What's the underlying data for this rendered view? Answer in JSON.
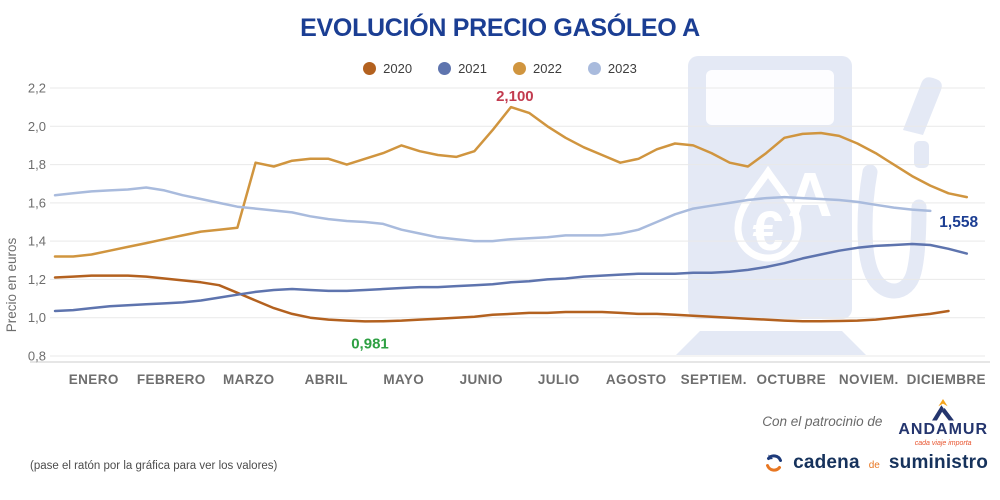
{
  "page": {
    "footnote": "(pase el ratón por la gráfica para ver los valores)",
    "sponsor_prefix": "Con el patrocinio de",
    "sponsor_name": "ANDAMUR",
    "sponsor_tagline": "cada viaje importa",
    "publisher": {
      "word1": "cadena",
      "word2": "de",
      "word3": "suministro"
    }
  },
  "watermark": {
    "name": "fuel-pump-euro-gasoleo-a",
    "color": "#e4e9f5"
  },
  "chart_data": {
    "type": "line",
    "title": "EVOLUCIÓN PRECIO GASÓLEO A",
    "ylabel": "Precio en euros",
    "ylim": [
      0.8,
      2.2
    ],
    "grid": true,
    "legend_position": "top",
    "yticks": [
      {
        "label": "0,8",
        "value": 0.8
      },
      {
        "label": "1,0",
        "value": 1.0
      },
      {
        "label": "1,2",
        "value": 1.2
      },
      {
        "label": "1,4",
        "value": 1.4
      },
      {
        "label": "1,6",
        "value": 1.6
      },
      {
        "label": "1,8",
        "value": 1.8
      },
      {
        "label": "2,0",
        "value": 2.0
      },
      {
        "label": "2,2",
        "value": 2.2
      }
    ],
    "categories": [
      "ENERO",
      "FEBRERO",
      "MARZO",
      "ABRIL",
      "MAYO",
      "JUNIO",
      "JULIO",
      "AGOSTO",
      "SEPTIEM.",
      "OCTUBRE",
      "NOVIEM.",
      "DICIEMBRE"
    ],
    "x_resolution": "weekly",
    "weeks_per_year": 52,
    "series": [
      {
        "name": "2020",
        "color": "#b3611f",
        "values": [
          1.21,
          1.215,
          1.22,
          1.22,
          1.22,
          1.215,
          1.205,
          1.195,
          1.185,
          1.17,
          1.13,
          1.09,
          1.05,
          1.02,
          1.0,
          0.99,
          0.985,
          0.981,
          0.982,
          0.985,
          0.99,
          0.995,
          1.0,
          1.005,
          1.015,
          1.02,
          1.025,
          1.025,
          1.03,
          1.03,
          1.03,
          1.025,
          1.02,
          1.02,
          1.015,
          1.01,
          1.005,
          1.0,
          0.995,
          0.99,
          0.985,
          0.982,
          0.982,
          0.983,
          0.985,
          0.99,
          1.0,
          1.01,
          1.02,
          1.035
        ]
      },
      {
        "name": "2021",
        "color": "#5e74ae",
        "values": [
          1.035,
          1.04,
          1.05,
          1.06,
          1.065,
          1.07,
          1.075,
          1.08,
          1.09,
          1.105,
          1.12,
          1.135,
          1.145,
          1.15,
          1.145,
          1.14,
          1.14,
          1.145,
          1.15,
          1.155,
          1.16,
          1.16,
          1.165,
          1.17,
          1.175,
          1.185,
          1.19,
          1.2,
          1.205,
          1.215,
          1.22,
          1.225,
          1.23,
          1.23,
          1.23,
          1.235,
          1.235,
          1.24,
          1.25,
          1.265,
          1.285,
          1.31,
          1.33,
          1.35,
          1.365,
          1.375,
          1.38,
          1.385,
          1.38,
          1.36,
          1.335
        ]
      },
      {
        "name": "2022",
        "color": "#d0953f",
        "values": [
          1.32,
          1.32,
          1.33,
          1.35,
          1.37,
          1.39,
          1.41,
          1.43,
          1.45,
          1.46,
          1.47,
          1.81,
          1.79,
          1.82,
          1.83,
          1.83,
          1.8,
          1.83,
          1.86,
          1.9,
          1.87,
          1.85,
          1.84,
          1.87,
          1.98,
          2.1,
          2.07,
          2.0,
          1.94,
          1.89,
          1.85,
          1.81,
          1.83,
          1.88,
          1.91,
          1.9,
          1.86,
          1.81,
          1.79,
          1.86,
          1.94,
          1.96,
          1.965,
          1.95,
          1.91,
          1.86,
          1.8,
          1.74,
          1.69,
          1.65,
          1.63
        ]
      },
      {
        "name": "2023",
        "color": "#a9bbdd",
        "values": [
          1.64,
          1.65,
          1.66,
          1.665,
          1.67,
          1.68,
          1.665,
          1.64,
          1.62,
          1.6,
          1.58,
          1.57,
          1.56,
          1.55,
          1.53,
          1.515,
          1.505,
          1.5,
          1.49,
          1.46,
          1.44,
          1.42,
          1.41,
          1.4,
          1.4,
          1.41,
          1.415,
          1.42,
          1.43,
          1.43,
          1.43,
          1.44,
          1.46,
          1.5,
          1.54,
          1.57,
          1.585,
          1.6,
          1.615,
          1.625,
          1.63,
          1.625,
          1.62,
          1.615,
          1.605,
          1.59,
          1.575,
          1.565,
          1.558
        ]
      }
    ],
    "annotations": [
      {
        "text": "2,100",
        "series": "2022",
        "position": "peak",
        "color": "#c23b4f"
      },
      {
        "text": "0,981",
        "series": "2020",
        "position": "min",
        "color": "#2ea043"
      },
      {
        "text": "1,558",
        "series": "2023",
        "position": "end",
        "color": "#1c3e93"
      }
    ]
  }
}
